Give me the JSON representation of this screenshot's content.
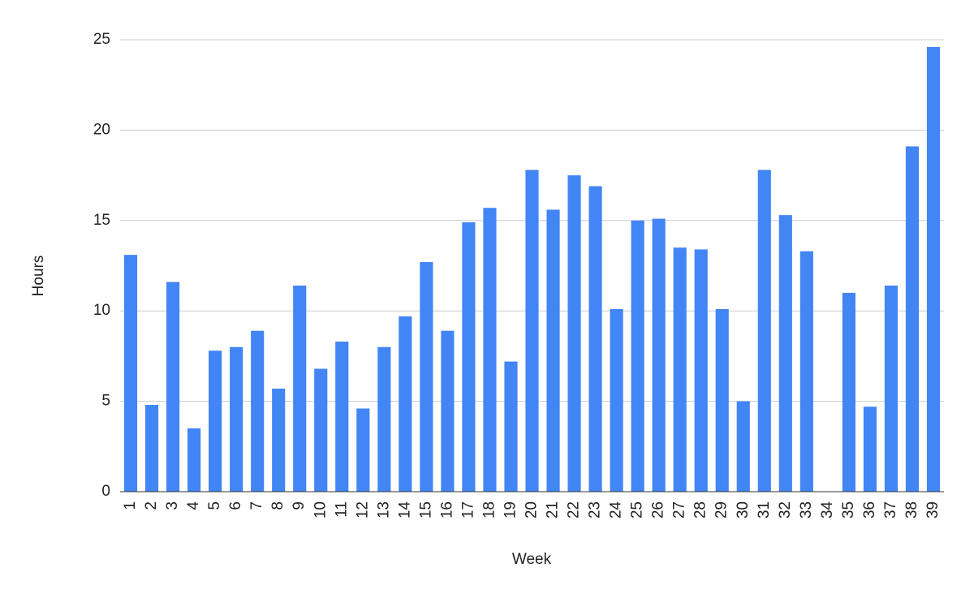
{
  "chart_data": {
    "type": "bar",
    "x_label": "Week",
    "y_label": "Hours",
    "categories": [
      "1",
      "2",
      "3",
      "4",
      "5",
      "6",
      "7",
      "8",
      "9",
      "10",
      "11",
      "12",
      "13",
      "14",
      "15",
      "16",
      "17",
      "18",
      "19",
      "20",
      "21",
      "22",
      "23",
      "24",
      "25",
      "26",
      "27",
      "28",
      "29",
      "30",
      "31",
      "32",
      "33",
      "34",
      "35",
      "36",
      "37",
      "38",
      "39"
    ],
    "values": [
      13.1,
      4.8,
      11.6,
      3.5,
      7.8,
      8.0,
      8.9,
      5.7,
      11.4,
      6.8,
      8.3,
      4.6,
      8.0,
      9.7,
      12.7,
      8.9,
      14.9,
      15.7,
      7.2,
      17.8,
      15.6,
      17.5,
      16.9,
      10.1,
      15.0,
      15.1,
      13.5,
      13.4,
      10.1,
      5.0,
      17.8,
      15.3,
      13.3,
      0,
      11.0,
      4.7,
      11.4,
      19.1,
      24.6
    ],
    "color": "#4285f4",
    "ylim": [
      0,
      25
    ],
    "yticks": [
      0,
      5,
      10,
      15,
      20,
      25
    ],
    "grid": true
  }
}
